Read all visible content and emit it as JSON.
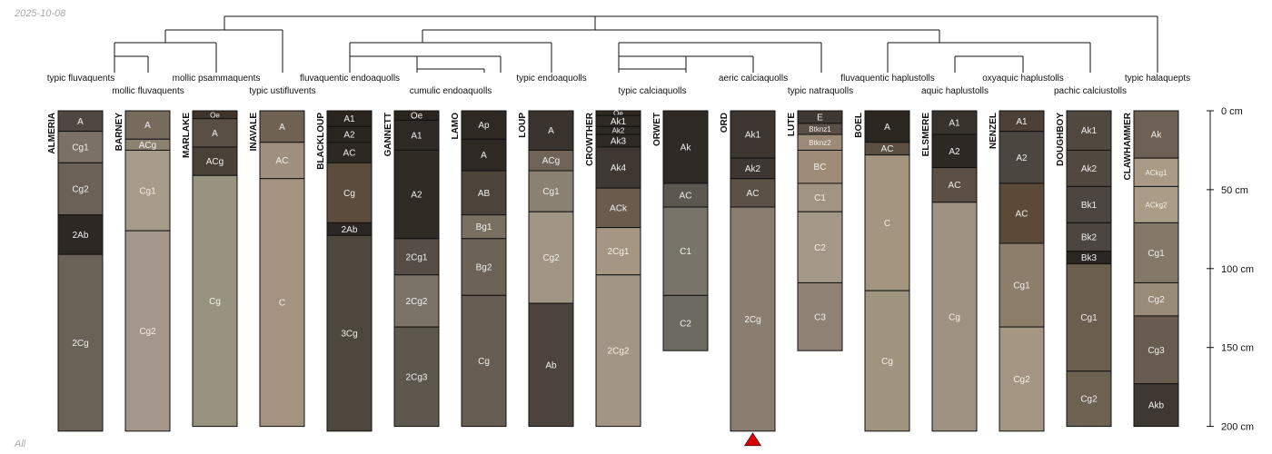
{
  "meta": {
    "date": "2025-10-08",
    "footer": "All"
  },
  "depth_axis": {
    "max_cm": 200,
    "unit": "cm",
    "ticks": [
      0,
      50,
      100,
      150,
      200
    ]
  },
  "taxa": [
    "typic fluvaquents",
    "mollic fluvaquents",
    "mollic psammaquents",
    "typic ustifluvents",
    "fluvaquentic endoaquolls",
    "cumulic endoaquolls",
    "typic endoaquolls",
    "typic calciaquolls",
    "aeric calciaquolls",
    "typic natraquolls",
    "fluvaquentic haplustolls",
    "aquic haplustolls",
    "oxyaquic haplustolls",
    "pachic calciustolls",
    "typic halaquepts"
  ],
  "marker": {
    "profile": "ORD",
    "color": "#dd0000"
  },
  "profiles": [
    {
      "name": "ALMERIA",
      "horizons": [
        {
          "name": "A",
          "top": 0,
          "bottom": 13,
          "color": "#4f4740"
        },
        {
          "name": "Cg1",
          "top": 13,
          "bottom": 33,
          "color": "#7b7166"
        },
        {
          "name": "Cg2",
          "top": 33,
          "bottom": 66,
          "color": "#6b6156"
        },
        {
          "name": "2Ab",
          "top": 66,
          "bottom": 91,
          "color": "#2d2823"
        },
        {
          "name": "2Cg",
          "top": 91,
          "bottom": 203,
          "color": "#6a6256"
        }
      ]
    },
    {
      "name": "BARNEY",
      "horizons": [
        {
          "name": "A",
          "top": 0,
          "bottom": 18,
          "color": "#776b5d"
        },
        {
          "name": "ACg",
          "top": 18,
          "bottom": 25,
          "color": "#8d8272"
        },
        {
          "name": "Cg1",
          "top": 25,
          "bottom": 76,
          "color": "#a69a89"
        },
        {
          "name": "Cg2",
          "top": 76,
          "bottom": 203,
          "color": "#a4968a"
        }
      ]
    },
    {
      "name": "MARLAKE",
      "horizons": [
        {
          "name": "Oe",
          "top": 0,
          "bottom": 5,
          "color": "#3e342b"
        },
        {
          "name": "A",
          "top": 5,
          "bottom": 23,
          "color": "#594f45"
        },
        {
          "name": "ACg",
          "top": 23,
          "bottom": 41,
          "color": "#4a4238"
        },
        {
          "name": "Cg",
          "top": 41,
          "bottom": 200,
          "color": "#97937f"
        }
      ]
    },
    {
      "name": "INAVALE",
      "horizons": [
        {
          "name": "A",
          "top": 0,
          "bottom": 20,
          "color": "#6f6253"
        },
        {
          "name": "AC",
          "top": 20,
          "bottom": 43,
          "color": "#9e8f7e"
        },
        {
          "name": "C",
          "top": 43,
          "bottom": 200,
          "color": "#a49380"
        }
      ]
    },
    {
      "name": "BLACKLOUP",
      "horizons": [
        {
          "name": "A1",
          "top": 0,
          "bottom": 10,
          "color": "#2b2520"
        },
        {
          "name": "A2",
          "top": 10,
          "bottom": 20,
          "color": "#2b2520"
        },
        {
          "name": "AC",
          "top": 20,
          "bottom": 33,
          "color": "#2e2823"
        },
        {
          "name": "Cg",
          "top": 33,
          "bottom": 71,
          "color": "#5c4c3e"
        },
        {
          "name": "2Ab",
          "top": 71,
          "bottom": 79,
          "color": "#2c2722"
        },
        {
          "name": "3Cg",
          "top": 79,
          "bottom": 203,
          "color": "#4e473e"
        }
      ]
    },
    {
      "name": "GANNETT",
      "horizons": [
        {
          "name": "Oe",
          "top": 0,
          "bottom": 6,
          "color": "#2a2420"
        },
        {
          "name": "A1",
          "top": 6,
          "bottom": 25,
          "color": "#2f2925"
        },
        {
          "name": "A2",
          "top": 25,
          "bottom": 81,
          "color": "#312b26"
        },
        {
          "name": "2Cg1",
          "top": 81,
          "bottom": 104,
          "color": "#564e46"
        },
        {
          "name": "2Cg2",
          "top": 104,
          "bottom": 137,
          "color": "#7c7368"
        },
        {
          "name": "2Cg3",
          "top": 137,
          "bottom": 200,
          "color": "#5e574e"
        }
      ]
    },
    {
      "name": "LAMO",
      "horizons": [
        {
          "name": "Ap",
          "top": 0,
          "bottom": 18,
          "color": "#2f2924"
        },
        {
          "name": "A",
          "top": 18,
          "bottom": 38,
          "color": "#2f2924"
        },
        {
          "name": "AB",
          "top": 38,
          "bottom": 66,
          "color": "#4c433a"
        },
        {
          "name": "Bg1",
          "top": 66,
          "bottom": 81,
          "color": "#7a7062"
        },
        {
          "name": "Bg2",
          "top": 81,
          "bottom": 117,
          "color": "#6c6256"
        },
        {
          "name": "Cg",
          "top": 117,
          "bottom": 200,
          "color": "#675d52"
        }
      ]
    },
    {
      "name": "LOUP",
      "horizons": [
        {
          "name": "A",
          "top": 0,
          "bottom": 25,
          "color": "#3b342e"
        },
        {
          "name": "ACg",
          "top": 25,
          "bottom": 38,
          "color": "#6f6457"
        },
        {
          "name": "Cg1",
          "top": 38,
          "bottom": 64,
          "color": "#8b8173"
        },
        {
          "name": "Cg2",
          "top": 64,
          "bottom": 122,
          "color": "#a09584"
        },
        {
          "name": "Ab",
          "top": 122,
          "bottom": 200,
          "color": "#4c443c"
        }
      ]
    },
    {
      "name": "CROWTHER",
      "horizons": [
        {
          "name": "Oe",
          "top": 0,
          "bottom": 3,
          "color": "#2f2924"
        },
        {
          "name": "Ak1",
          "top": 3,
          "bottom": 10,
          "color": "#2f2924"
        },
        {
          "name": "Ak2",
          "top": 10,
          "bottom": 15,
          "color": "#2f2924"
        },
        {
          "name": "Ak3",
          "top": 15,
          "bottom": 23,
          "color": "#2f2924"
        },
        {
          "name": "Ak4",
          "top": 23,
          "bottom": 49,
          "color": "#3f3832"
        },
        {
          "name": "ACk",
          "top": 49,
          "bottom": 74,
          "color": "#6a5b4d"
        },
        {
          "name": "2Cg1",
          "top": 74,
          "bottom": 104,
          "color": "#a59684"
        },
        {
          "name": "2Cg2",
          "top": 104,
          "bottom": 200,
          "color": "#a39584"
        }
      ]
    },
    {
      "name": "ORWET",
      "horizons": [
        {
          "name": "Ak",
          "top": 0,
          "bottom": 46,
          "color": "#2f2a25"
        },
        {
          "name": "AC",
          "top": 46,
          "bottom": 61,
          "color": "#5c5850"
        },
        {
          "name": "C1",
          "top": 61,
          "bottom": 117,
          "color": "#787469"
        },
        {
          "name": "C2",
          "top": 117,
          "bottom": 152,
          "color": "#6c6961"
        }
      ]
    },
    {
      "name": "ORD",
      "horizons": [
        {
          "name": "Ak1",
          "top": 0,
          "bottom": 30,
          "color": "#3e3731"
        },
        {
          "name": "Ak2",
          "top": 30,
          "bottom": 43,
          "color": "#3e3731"
        },
        {
          "name": "AC",
          "top": 43,
          "bottom": 61,
          "color": "#5b5147"
        },
        {
          "name": "2Cg",
          "top": 61,
          "bottom": 203,
          "color": "#8a7e70"
        }
      ]
    },
    {
      "name": "LUTE",
      "horizons": [
        {
          "name": "E",
          "top": 0,
          "bottom": 8,
          "color": "#3e3732"
        },
        {
          "name": "Btknz1",
          "top": 8,
          "bottom": 15,
          "color": "#5a5047"
        },
        {
          "name": "Btknz2",
          "top": 15,
          "bottom": 25,
          "color": "#9c8a76"
        },
        {
          "name": "BC",
          "top": 25,
          "bottom": 46,
          "color": "#9e8c77"
        },
        {
          "name": "C1",
          "top": 46,
          "bottom": 64,
          "color": "#a09483"
        },
        {
          "name": "C2",
          "top": 64,
          "bottom": 109,
          "color": "#a49888"
        },
        {
          "name": "C3",
          "top": 109,
          "bottom": 152,
          "color": "#8d8274"
        }
      ]
    },
    {
      "name": "BOEL",
      "horizons": [
        {
          "name": "A",
          "top": 0,
          "bottom": 20,
          "color": "#2c2620"
        },
        {
          "name": "AC",
          "top": 20,
          "bottom": 28,
          "color": "#5c4e41"
        },
        {
          "name": "C",
          "top": 28,
          "bottom": 114,
          "color": "#a39580"
        },
        {
          "name": "Cg",
          "top": 114,
          "bottom": 203,
          "color": "#9e9480"
        }
      ]
    },
    {
      "name": "ELSMERE",
      "horizons": [
        {
          "name": "A1",
          "top": 0,
          "bottom": 15,
          "color": "#38322c"
        },
        {
          "name": "A2",
          "top": 15,
          "bottom": 36,
          "color": "#2d2823"
        },
        {
          "name": "AC",
          "top": 36,
          "bottom": 58,
          "color": "#5c5046"
        },
        {
          "name": "Cg",
          "top": 58,
          "bottom": 203,
          "color": "#a09282"
        }
      ]
    },
    {
      "name": "NENZEL",
      "horizons": [
        {
          "name": "A1",
          "top": 0,
          "bottom": 13,
          "color": "#4c4036"
        },
        {
          "name": "A2",
          "top": 13,
          "bottom": 46,
          "color": "#4c4640"
        },
        {
          "name": "AC",
          "top": 46,
          "bottom": 84,
          "color": "#5b4a37"
        },
        {
          "name": "Cg1",
          "top": 84,
          "bottom": 137,
          "color": "#8d7d6b"
        },
        {
          "name": "Cg2",
          "top": 137,
          "bottom": 203,
          "color": "#a49683"
        }
      ]
    },
    {
      "name": "DOUGHBOY",
      "horizons": [
        {
          "name": "Ak1",
          "top": 0,
          "bottom": 25,
          "color": "#514840"
        },
        {
          "name": "Ak2",
          "top": 25,
          "bottom": 48,
          "color": "#514840"
        },
        {
          "name": "Bk1",
          "top": 48,
          "bottom": 71,
          "color": "#4d4640"
        },
        {
          "name": "Bk2",
          "top": 71,
          "bottom": 89,
          "color": "#4d4640"
        },
        {
          "name": "Bk3",
          "top": 89,
          "bottom": 97,
          "color": "#2b2622"
        },
        {
          "name": "Cg1",
          "top": 97,
          "bottom": 165,
          "color": "#6a5e4f"
        },
        {
          "name": "Cg2",
          "top": 165,
          "bottom": 200,
          "color": "#6d6252"
        }
      ]
    },
    {
      "name": "CLAWHAMMER",
      "horizons": [
        {
          "name": "Ak",
          "top": 0,
          "bottom": 30,
          "color": "#6c6154"
        },
        {
          "name": "ACkg1",
          "top": 30,
          "bottom": 48,
          "color": "#a89a85"
        },
        {
          "name": "ACkg2",
          "top": 48,
          "bottom": 71,
          "color": "#aa9c86"
        },
        {
          "name": "Cg1",
          "top": 71,
          "bottom": 109,
          "color": "#847868"
        },
        {
          "name": "Cg2",
          "top": 109,
          "bottom": 130,
          "color": "#988b77"
        },
        {
          "name": "Cg3",
          "top": 130,
          "bottom": 173,
          "color": "#675c4f"
        },
        {
          "name": "Akb",
          "top": 173,
          "bottom": 200,
          "color": "#3f3731"
        }
      ]
    }
  ]
}
